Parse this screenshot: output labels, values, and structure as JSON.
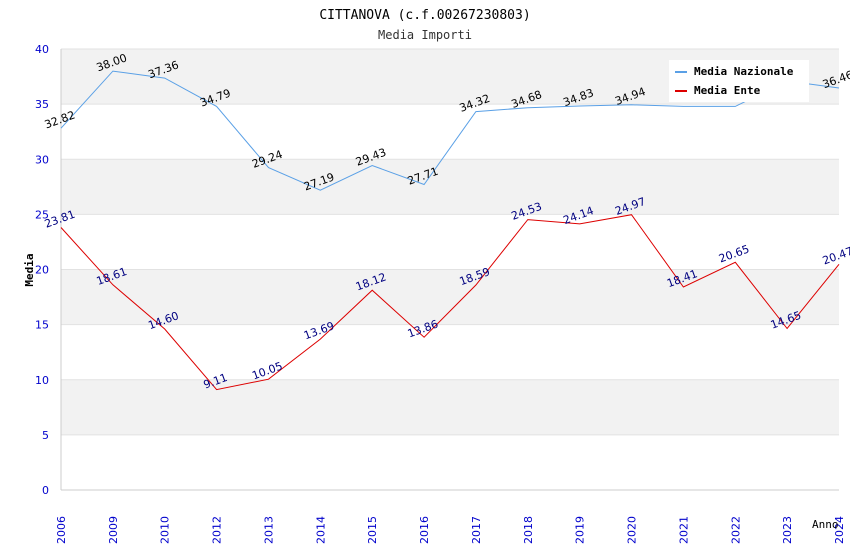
{
  "chart_data": {
    "type": "line",
    "title": "CITTANOVA (c.f.00267230803)",
    "subtitle": "Media Importi",
    "xlabel": "Anno",
    "ylabel": "Media",
    "ylim": [
      0,
      40
    ],
    "yticks": [
      0,
      5,
      10,
      15,
      20,
      25,
      30,
      35,
      40
    ],
    "categories": [
      "2006",
      "2009",
      "2010",
      "2012",
      "2013",
      "2014",
      "2015",
      "2016",
      "2017",
      "2018",
      "2019",
      "2020",
      "2021",
      "2022",
      "2023",
      "2024"
    ],
    "series": [
      {
        "name": "Media Nazionale",
        "color": "#5aa0e6",
        "label_color": "#000000",
        "values": [
          32.82,
          38.0,
          37.36,
          34.79,
          29.24,
          27.19,
          29.43,
          27.71,
          34.32,
          34.68,
          34.83,
          34.94,
          34.79,
          34.79,
          37.1,
          36.46
        ],
        "labels": [
          "32.82",
          "38.00",
          "37.36",
          "34.79",
          "29.24",
          "27.19",
          "29.43",
          "27.71",
          "34.32",
          "34.68",
          "34.83",
          "34.94",
          "",
          "",
          "",
          "36.46"
        ]
      },
      {
        "name": "Media Ente",
        "color": "#dd0000",
        "label_color": "#000080",
        "values": [
          23.81,
          18.61,
          14.6,
          9.11,
          10.05,
          13.69,
          18.12,
          13.86,
          18.59,
          24.53,
          24.14,
          24.97,
          18.41,
          20.65,
          14.65,
          20.47
        ],
        "labels": [
          "23.81",
          "18.61",
          "14.60",
          "9.11",
          "10.05",
          "13.69",
          "18.12",
          "13.86",
          "18.59",
          "24.53",
          "24.14",
          "24.97",
          "18.41",
          "20.65",
          "14.65",
          "20.47"
        ]
      }
    ],
    "legend": "top-right",
    "grid": true
  },
  "colors": {
    "axis_text": "#0000cc",
    "band": "#f2f2f2",
    "grid": "#e2e2e2",
    "frame": "#cccccc"
  }
}
